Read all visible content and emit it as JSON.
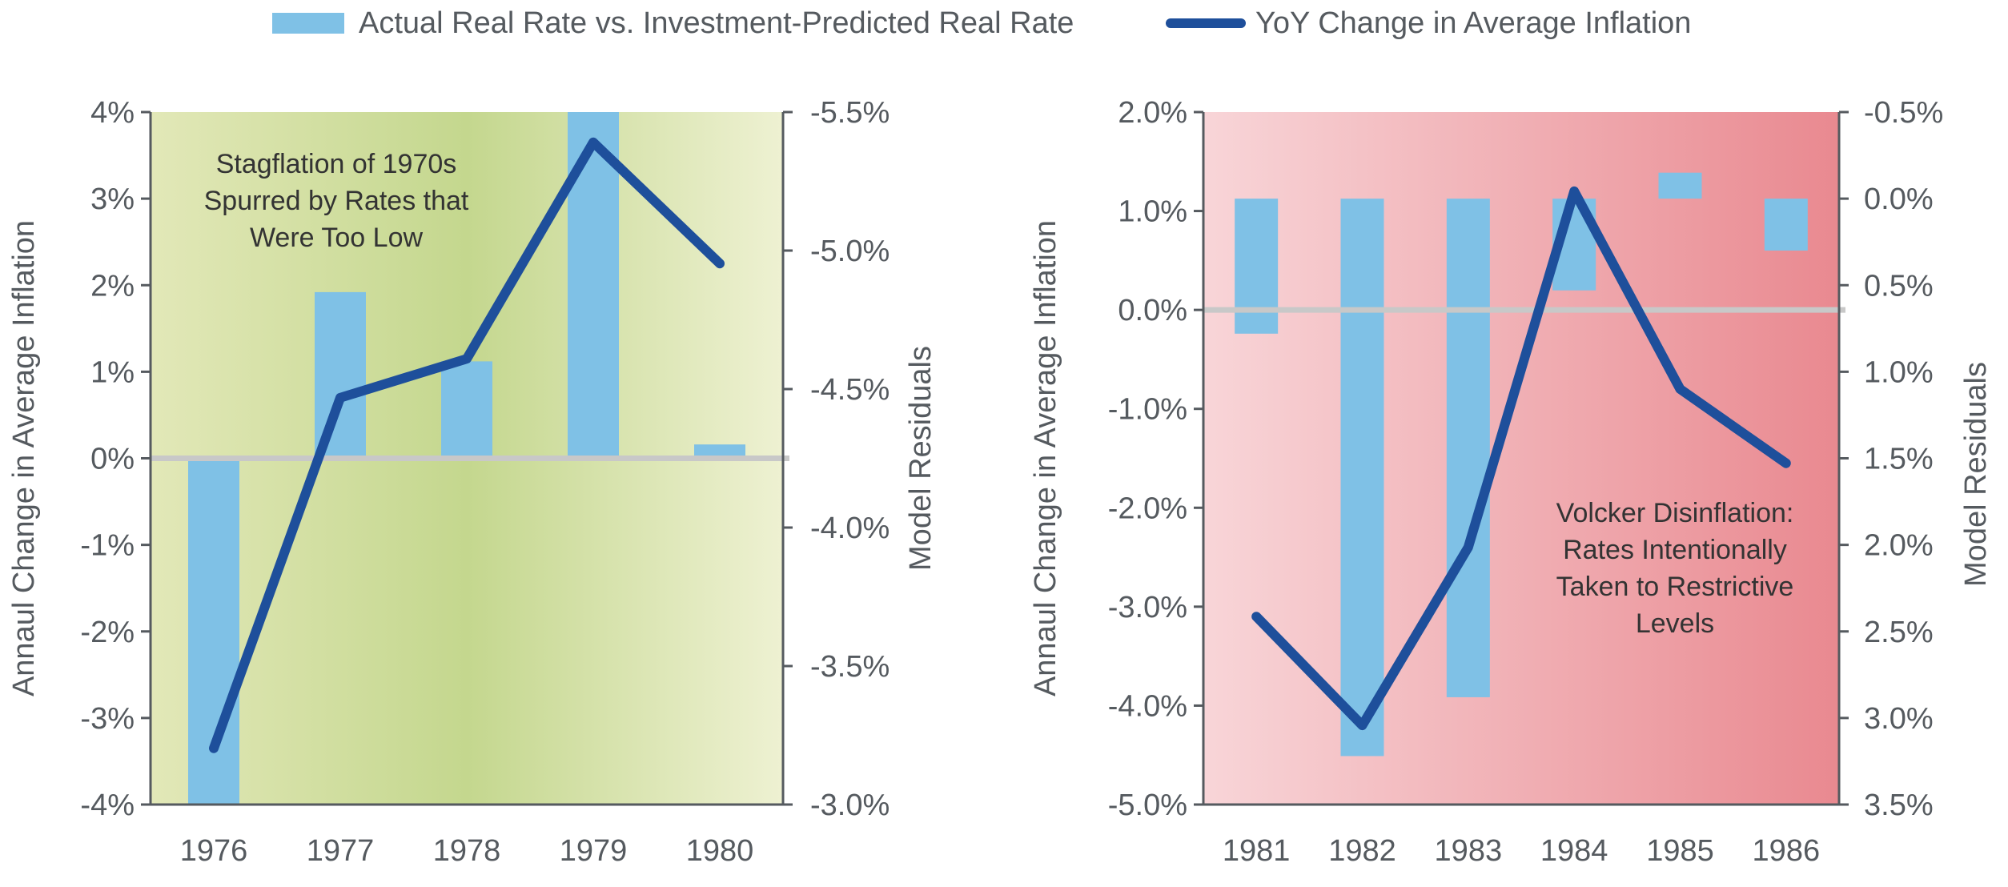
{
  "legend": {
    "bar_label": "Actual Real Rate vs. Investment-Predicted Real Rate",
    "line_label": "YoY Change in Average Inflation"
  },
  "colors": {
    "bar": "#7fc1e6",
    "line": "#1e4f9b",
    "zero_line": "#c8c8c8",
    "axis": "#555a5f",
    "left_panel_gradient": [
      "#e2e8b8",
      "#c4d78e",
      "#eef1d2"
    ],
    "right_panel_gradient": [
      "#f8d5d8",
      "#e98990"
    ]
  },
  "chart_data": [
    {
      "type": "bar+line",
      "title": "",
      "annotation": [
        "Stagflation of 1970s",
        "Spurred by Rates that",
        "Were Too Low"
      ],
      "categories": [
        "1976",
        "1977",
        "1978",
        "1979",
        "1980"
      ],
      "ylabel": "Annaul Change in Average Inflation",
      "y2label": "Model Residuals",
      "ylim": [
        -4,
        4
      ],
      "y2lim": [
        -3.0,
        -5.5
      ],
      "yticks": [
        "4%",
        "3%",
        "2%",
        "1%",
        "0%",
        "-1%",
        "-2%",
        "-3%",
        "-4%"
      ],
      "y2ticks": [
        "-5.5%",
        "-5.0%",
        "-4.5%",
        "-4.0%",
        "-3.5%",
        "-3.0%"
      ],
      "series": [
        {
          "name": "Actual Real Rate vs. Investment-Predicted Real Rate",
          "kind": "bar",
          "axis": "right",
          "values": [
            -3.0,
            -4.85,
            -4.6,
            -5.5,
            -4.3
          ]
        },
        {
          "name": "YoY Change in Average Inflation",
          "kind": "line",
          "axis": "left",
          "values": [
            -3.35,
            0.7,
            1.15,
            3.65,
            2.25
          ]
        }
      ],
      "bar_baseline": -4.25,
      "grid": false
    },
    {
      "type": "bar+line",
      "title": "",
      "annotation": [
        "Volcker Disinflation:",
        "Rates Intentionally",
        "Taken to Restrictive",
        "Levels"
      ],
      "categories": [
        "1981",
        "1982",
        "1983",
        "1984",
        "1985",
        "1986"
      ],
      "ylabel": "Annaul Change in Average Inflation",
      "y2label": "Model Residuals",
      "ylim": [
        -5.0,
        2.0
      ],
      "y2lim": [
        3.5,
        -0.5
      ],
      "yticks": [
        "2.0%",
        "1.0%",
        "0.0%",
        "-1.0%",
        "-2.0%",
        "-3.0%",
        "-4.0%",
        "-5.0%"
      ],
      "y2ticks": [
        "-0.5%",
        "0.0%",
        "0.5%",
        "1.0%",
        "1.5%",
        "2.0%",
        "2.5%",
        "3.0%",
        "3.5%"
      ],
      "series": [
        {
          "name": "Actual Real Rate vs. Investment-Predicted Real Rate",
          "kind": "bar",
          "axis": "right",
          "values": [
            0.78,
            3.22,
            2.88,
            0.53,
            -0.15,
            0.3
          ]
        },
        {
          "name": "YoY Change in Average Inflation",
          "kind": "line",
          "axis": "left",
          "values": [
            -3.1,
            -4.2,
            -2.4,
            1.2,
            -0.8,
            -1.55
          ]
        }
      ],
      "bar_baseline": 0.0,
      "grid": false
    }
  ]
}
